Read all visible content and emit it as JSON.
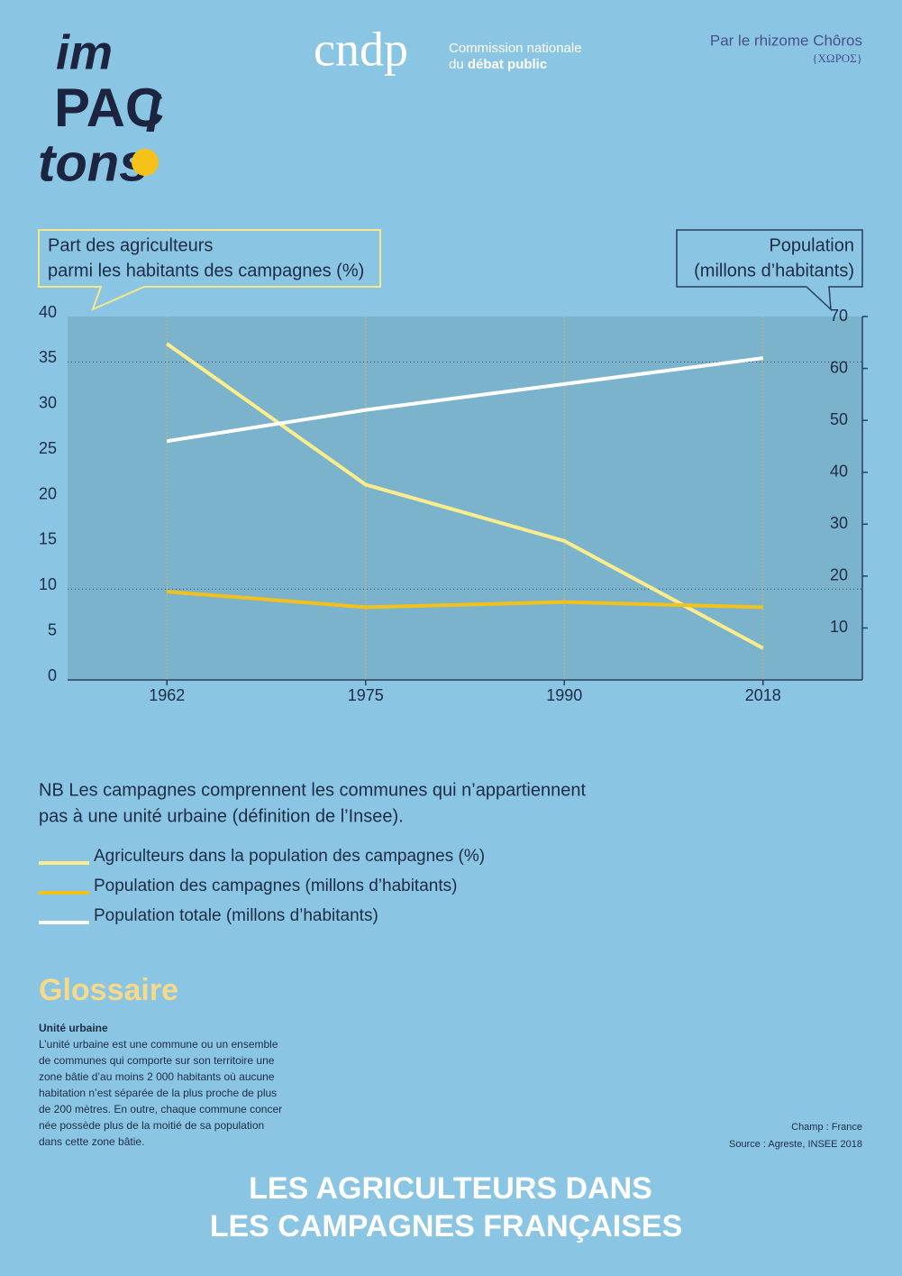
{
  "header": {
    "logo": [
      "im",
      "PAC",
      "tons",
      "!"
    ],
    "cndp": "cndp",
    "org_line1": "Commission nationale",
    "org_line2_prefix": "du",
    "org_line2_bold": "débat public",
    "credit": "Par le rhizome Chôros",
    "credit_greek": "{ΧΩΡΟΣ}"
  },
  "chart_data": {
    "type": "line",
    "y_label": [
      "Part des agriculteurs",
      "parmi les habitants des campagnes (%)"
    ],
    "y2_label": [
      "Population",
      "(millons d’habitants)"
    ],
    "categories": [
      "1962",
      "1975",
      "1990",
      "2018"
    ],
    "ylim": [
      0,
      40
    ],
    "yticks": [
      0,
      5,
      10,
      15,
      20,
      25,
      30,
      35,
      40
    ],
    "y2lim": [
      0,
      70
    ],
    "y2ticks": [
      10,
      20,
      30,
      40,
      50,
      60,
      70
    ],
    "hgrid": [
      10,
      35
    ],
    "grid": true,
    "series": [
      {
        "name": "Agriculteurs dans la population des campagnes (%)",
        "color": "#fbec8c",
        "values": [
          37,
          21.5,
          15.3,
          3.5
        ]
      },
      {
        "name": "Population des campagnes (millons d’habitants)",
        "color": "#f3c21a",
        "axis": "y2",
        "values": [
          17,
          14,
          15,
          14
        ]
      },
      {
        "name": "Population totale (millons d’habitants)",
        "color": "#ffffff",
        "axis": "y2",
        "values": [
          46,
          52,
          57,
          62
        ]
      }
    ]
  },
  "note": [
    "NB Les campagnes comprennent les communes qui n’appartiennent",
    "pas à une unité urbaine (définition de l’Insee)."
  ],
  "glossary": {
    "title": "Glossaire",
    "term": "Unité urbaine",
    "lines": [
      "L’unité urbaine est une commune ou un ensemble",
      "de communes qui comporte sur son territoire une",
      "zone bâtie d’au moins 2 000 habitants où aucune",
      "habitation n’est séparée de la plus proche de plus",
      "de 200 mètres. En outre, chaque commune concer",
      "née possède plus de la moitié de sa population",
      "dans cette zone bâtie."
    ]
  },
  "source": [
    "Champ : France",
    "Source : Agreste, INSEE 2018"
  ],
  "title": [
    "LES AGRICULTEURS DANS",
    "LES CAMPAGNES FRANÇAISES"
  ]
}
